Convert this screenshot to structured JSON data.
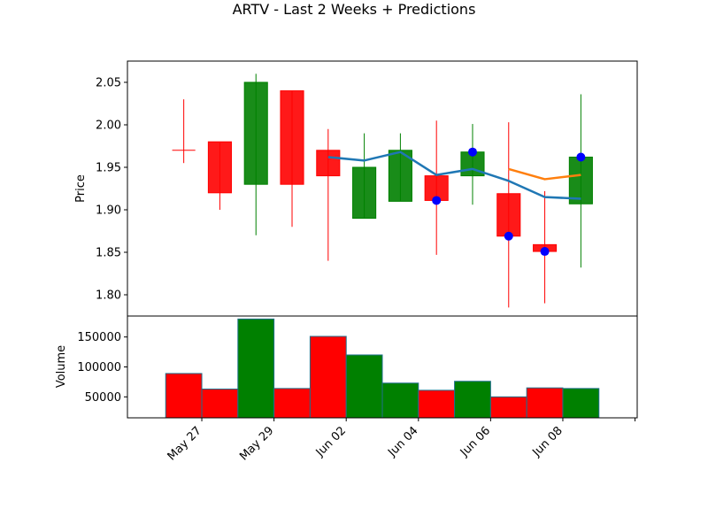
{
  "chart_data": {
    "type": "candlestick",
    "title": "ARTV - Last 2 Weeks + Predictions",
    "price_panel": {
      "ylabel": "Price",
      "ylim": [
        1.775,
        2.075
      ],
      "yticks": [
        1.8,
        1.85,
        1.9,
        1.95,
        2.0,
        2.05
      ],
      "ytick_labels": [
        "1.80",
        "1.85",
        "1.90",
        "1.95",
        "2.00",
        "2.05"
      ]
    },
    "volume_panel": {
      "ylabel": "Volume",
      "ylim": [
        15000,
        185000
      ],
      "yticks": [
        50000,
        100000,
        150000
      ],
      "ytick_labels": [
        "50000",
        "100000",
        "150000"
      ]
    },
    "xlim": [
      -1.06,
      13.06
    ],
    "xticks": [
      1,
      3,
      5,
      7,
      9,
      11,
      13
    ],
    "xtick_labels": [
      "May 27",
      "May 29",
      "Jun 02",
      "Jun 04",
      "Jun 06",
      "Jun 08",
      ""
    ],
    "candles": [
      {
        "x": 0.5,
        "open": 1.97,
        "high": 2.03,
        "low": 1.955,
        "close": 1.97,
        "volume": 89000,
        "color": "red"
      },
      {
        "x": 1.5,
        "open": 1.98,
        "high": 1.98,
        "low": 1.9,
        "close": 1.92,
        "volume": 63000,
        "color": "red"
      },
      {
        "x": 2.5,
        "open": 1.93,
        "high": 2.06,
        "low": 1.87,
        "close": 2.05,
        "volume": 180000,
        "color": "green"
      },
      {
        "x": 3.5,
        "open": 2.04,
        "high": 2.04,
        "low": 1.88,
        "close": 1.93,
        "volume": 64000,
        "color": "red"
      },
      {
        "x": 4.5,
        "open": 1.97,
        "high": 1.995,
        "low": 1.84,
        "close": 1.94,
        "volume": 151000,
        "color": "red"
      },
      {
        "x": 5.5,
        "open": 1.89,
        "high": 1.99,
        "low": 1.89,
        "close": 1.95,
        "volume": 120000,
        "color": "green"
      },
      {
        "x": 6.5,
        "open": 1.91,
        "high": 1.99,
        "low": 1.91,
        "close": 1.97,
        "volume": 73000,
        "color": "green"
      },
      {
        "x": 7.5,
        "open": 1.94,
        "high": 2.005,
        "low": 1.847,
        "close": 1.911,
        "volume": 61000,
        "color": "red"
      },
      {
        "x": 8.5,
        "open": 1.94,
        "high": 2.001,
        "low": 1.906,
        "close": 1.968,
        "volume": 76000,
        "color": "green"
      },
      {
        "x": 9.5,
        "open": 1.919,
        "high": 2.003,
        "low": 1.785,
        "close": 1.869,
        "volume": 50000,
        "color": "red"
      },
      {
        "x": 10.5,
        "open": 1.859,
        "high": 1.922,
        "low": 1.79,
        "close": 1.851,
        "volume": 65000,
        "color": "red"
      },
      {
        "x": 11.5,
        "open": 1.907,
        "high": 2.036,
        "low": 1.832,
        "close": 1.962,
        "volume": 64000,
        "color": "green"
      }
    ],
    "series": [
      {
        "name": "blue-line",
        "color": "#1f77b4",
        "x": [
          4.5,
          5.5,
          6.5,
          7.5,
          8.5,
          9.5,
          10.5,
          11.5
        ],
        "values": [
          1.962,
          1.958,
          1.968,
          1.941,
          1.948,
          1.934,
          1.915,
          1.913
        ]
      },
      {
        "name": "orange-line",
        "color": "#ff7f0e",
        "x": [
          9.5,
          10.5,
          11.5
        ],
        "values": [
          1.948,
          1.936,
          1.941
        ]
      }
    ],
    "points": {
      "color": "#0000ff",
      "x": [
        7.5,
        8.5,
        9.5,
        10.5,
        11.5
      ],
      "values": [
        1.911,
        1.968,
        1.869,
        1.851,
        1.962
      ]
    }
  }
}
